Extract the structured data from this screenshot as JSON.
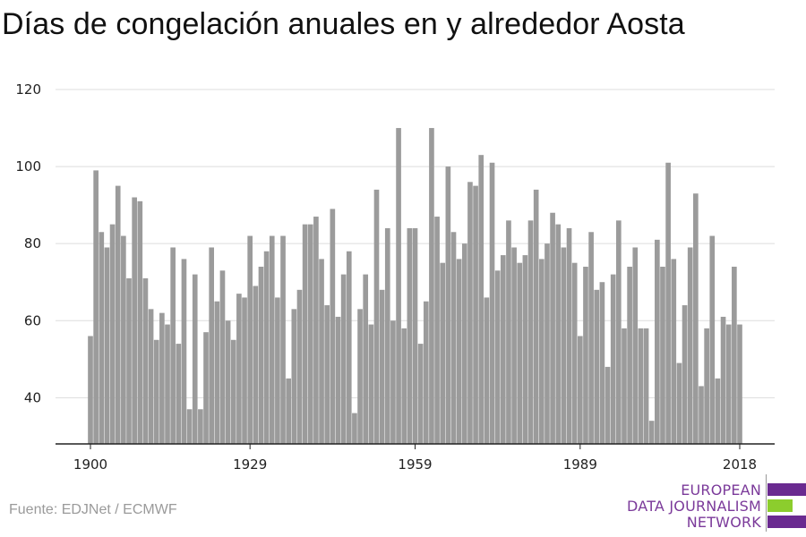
{
  "title": "Días de congelación anuales en y alrededor Aosta",
  "source": "Fuente: EDJNet / ECMWF",
  "logo": {
    "lines": [
      "EUROPEAN",
      "DATA JOURNALISM",
      "NETWORK"
    ],
    "colors": {
      "text": "#7b3a9a",
      "bar1": "#6a2a90",
      "bar2": "#8ccd2d",
      "bar3": "#6a2a90"
    }
  },
  "colors": {
    "bar": "#9b9b9b",
    "grid": "#dddddd",
    "axis": "#222222"
  },
  "chart_data": {
    "type": "bar",
    "title": "Días de congelación anuales en y alrededor Aosta",
    "xlabel": "",
    "ylabel": "",
    "ylim": [
      28,
      120
    ],
    "yticks": [
      40,
      60,
      80,
      100,
      120
    ],
    "xtick_labels": [
      "1900",
      "1929",
      "1959",
      "1989",
      "2018"
    ],
    "grid": true,
    "x": [
      1900,
      1901,
      1902,
      1903,
      1904,
      1905,
      1906,
      1907,
      1908,
      1909,
      1910,
      1911,
      1912,
      1913,
      1914,
      1915,
      1916,
      1917,
      1918,
      1919,
      1920,
      1921,
      1922,
      1923,
      1924,
      1925,
      1926,
      1927,
      1928,
      1929,
      1930,
      1931,
      1932,
      1933,
      1934,
      1935,
      1936,
      1937,
      1938,
      1939,
      1940,
      1941,
      1942,
      1943,
      1944,
      1945,
      1946,
      1947,
      1948,
      1949,
      1950,
      1951,
      1952,
      1953,
      1954,
      1955,
      1956,
      1957,
      1958,
      1959,
      1960,
      1961,
      1962,
      1963,
      1964,
      1965,
      1966,
      1967,
      1968,
      1969,
      1970,
      1971,
      1972,
      1973,
      1974,
      1975,
      1976,
      1977,
      1978,
      1979,
      1980,
      1981,
      1982,
      1983,
      1984,
      1985,
      1986,
      1987,
      1988,
      1989,
      1990,
      1991,
      1992,
      1993,
      1994,
      1995,
      1996,
      1997,
      1998,
      1999,
      2000,
      2001,
      2002,
      2003,
      2004,
      2005,
      2006,
      2007,
      2008,
      2009,
      2010,
      2011,
      2012,
      2013,
      2014,
      2015,
      2016,
      2017,
      2018
    ],
    "values": [
      56,
      99,
      83,
      79,
      85,
      95,
      82,
      71,
      92,
      91,
      71,
      63,
      55,
      62,
      59,
      79,
      54,
      76,
      37,
      72,
      37,
      57,
      79,
      65,
      73,
      60,
      55,
      67,
      66,
      82,
      69,
      74,
      78,
      82,
      66,
      82,
      45,
      63,
      68,
      85,
      85,
      87,
      76,
      64,
      89,
      61,
      72,
      78,
      36,
      63,
      72,
      59,
      94,
      68,
      84,
      60,
      110,
      58,
      84,
      84,
      54,
      65,
      110,
      87,
      75,
      100,
      83,
      76,
      80,
      96,
      95,
      103,
      66,
      101,
      73,
      77,
      86,
      79,
      75,
      77,
      86,
      94,
      76,
      80,
      88,
      85,
      79,
      84,
      75,
      56,
      74,
      83,
      68,
      70,
      48,
      72,
      86,
      58,
      74,
      79,
      58,
      58,
      34,
      81,
      74,
      101,
      76,
      49,
      64,
      79,
      93,
      43,
      58,
      82,
      45,
      61,
      59,
      74,
      59
    ]
  }
}
